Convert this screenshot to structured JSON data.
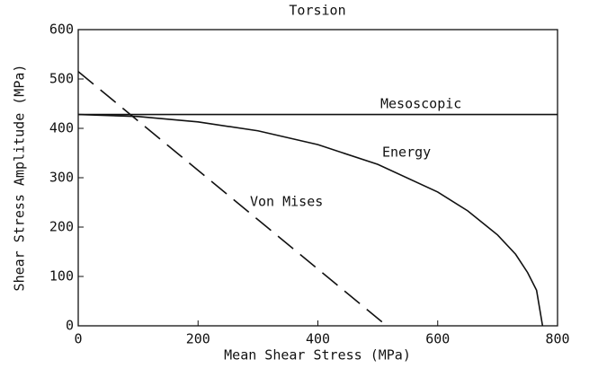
{
  "chart_data": {
    "type": "line",
    "title": "Torsion",
    "x_label": "Mean Shear Stress (MPa)",
    "y_label": "Shear Stress Amplitude (MPa)",
    "xlim": [
      0,
      800
    ],
    "xticks": [
      0,
      200,
      400,
      600,
      800
    ],
    "ylim": [
      0,
      600
    ],
    "yticks": [
      0,
      100,
      200,
      300,
      400,
      500,
      600
    ],
    "grid": false,
    "series": [
      {
        "name": "Mesoscopic",
        "color": "#111111",
        "dash": false,
        "x": [
          0,
          800
        ],
        "values": [
          428,
          428
        ]
      },
      {
        "name": "Energy",
        "color": "#111111",
        "dash": false,
        "x": [
          0,
          100,
          200,
          300,
          400,
          500,
          600,
          650,
          700,
          730,
          750,
          765,
          775
        ],
        "values": [
          428,
          424,
          413,
          395,
          367,
          327,
          271,
          233,
          184,
          145,
          108,
          72,
          0
        ]
      },
      {
        "name": "Von Mises",
        "color": "#111111",
        "dash": true,
        "x": [
          0,
          515
        ],
        "values": [
          515,
          0
        ]
      }
    ]
  }
}
